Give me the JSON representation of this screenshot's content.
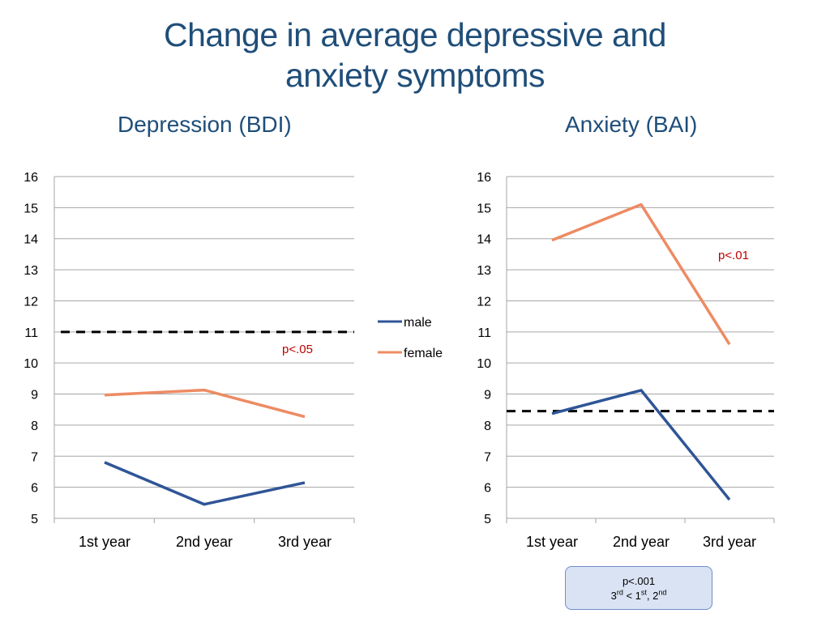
{
  "title_line1": "Change in average depressive and",
  "title_line2": "anxiety symptoms",
  "legend": {
    "male": "male",
    "female": "female"
  },
  "colors": {
    "male": "#2f5597",
    "female": "#ed8b63",
    "grid": "#a6a6a6",
    "annotation": "#c00000",
    "title": "#1f4e79"
  },
  "note": {
    "line1": "p<.001",
    "l2_a": "3",
    "l2_a_sup": "rd",
    "l2_b": " < 1",
    "l2_b_sup": "st",
    "l2_c": ", 2",
    "l2_c_sup": "nd"
  },
  "chart_data": [
    {
      "type": "line",
      "title": "Depression (BDI)",
      "categories": [
        "1st year",
        "2nd year",
        "3rd year"
      ],
      "yticks": [
        "5",
        "6",
        "7",
        "8",
        "9",
        "10",
        "11",
        "12",
        "13",
        "14",
        "15",
        "16"
      ],
      "ylim": [
        5,
        16
      ],
      "grid": true,
      "series": [
        {
          "name": "male",
          "values": [
            6.8,
            5.45,
            6.15
          ]
        },
        {
          "name": "female",
          "values": [
            8.97,
            9.13,
            8.27
          ]
        }
      ],
      "reference_line": {
        "value": 11.0,
        "style": "dashed"
      },
      "annotation": "p<.05"
    },
    {
      "type": "line",
      "title": "Anxiety (BAI)",
      "categories": [
        "1st year",
        "2nd year",
        "3rd year"
      ],
      "yticks": [
        "5",
        "6",
        "7",
        "8",
        "9",
        "10",
        "11",
        "12",
        "13",
        "14",
        "15",
        "16"
      ],
      "ylim": [
        5,
        16
      ],
      "grid": true,
      "series": [
        {
          "name": "male",
          "values": [
            8.37,
            9.12,
            5.6
          ]
        },
        {
          "name": "female",
          "values": [
            13.95,
            15.1,
            10.6
          ]
        }
      ],
      "reference_line": {
        "value": 8.45,
        "style": "dashed"
      },
      "annotation": "p<.01"
    }
  ]
}
